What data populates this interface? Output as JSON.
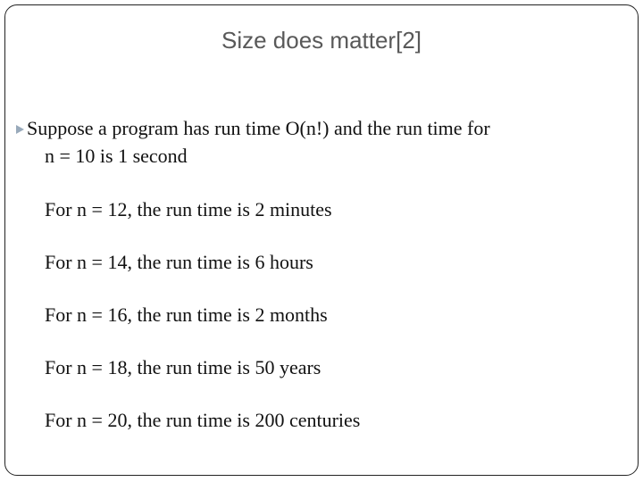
{
  "header": {
    "title": "Size does matter[2]"
  },
  "body": {
    "bullet": {
      "line1": "Suppose a program has run time O(n!) and the run time for",
      "line2": "n  = 10 is 1 second"
    },
    "items": [
      "For n = 12, the run time is 2 minutes",
      "For n = 14, the run time is 6 hours",
      "For n = 16, the run time is 2 months",
      "For n = 18, the run time is 50 years",
      "For n = 20, the run time is 200 centuries"
    ]
  }
}
